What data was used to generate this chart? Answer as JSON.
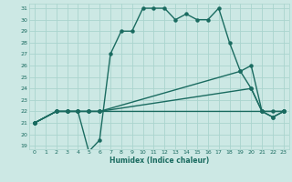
{
  "xlabel": "Humidex (Indice chaleur)",
  "bg_color": "#cce8e4",
  "grid_color": "#aad4ce",
  "line_color": "#1a6b60",
  "line1_x": [
    0,
    2,
    3,
    4,
    5,
    6,
    7,
    8,
    9,
    10,
    11,
    12,
    13,
    14,
    15,
    16,
    17,
    18,
    19,
    20,
    21,
    22,
    23
  ],
  "line1_y": [
    21,
    22,
    22,
    22,
    18.5,
    19.5,
    27,
    29,
    29,
    31,
    31,
    31,
    30,
    30.5,
    30,
    30,
    31,
    28,
    25.5,
    24,
    22,
    21.5,
    22
  ],
  "line2_x": [
    0,
    2,
    3,
    4,
    5,
    6,
    23
  ],
  "line2_y": [
    21,
    22,
    22,
    22,
    22,
    22,
    22
  ],
  "line3_x": [
    0,
    2,
    3,
    4,
    5,
    6,
    20,
    21,
    22,
    23
  ],
  "line3_y": [
    21,
    22,
    22,
    22,
    22,
    22,
    24,
    22,
    22,
    22
  ],
  "line4_x": [
    0,
    2,
    3,
    4,
    5,
    6,
    19,
    20,
    21,
    22,
    23
  ],
  "line4_y": [
    21,
    22,
    22,
    22,
    22,
    22,
    25.5,
    26,
    22,
    21.5,
    22
  ],
  "xmin": -0.5,
  "xmax": 23.5,
  "ymin": 18.7,
  "ymax": 31.4,
  "yticks": [
    19,
    20,
    21,
    22,
    23,
    24,
    25,
    26,
    27,
    28,
    29,
    30,
    31
  ],
  "xticks": [
    0,
    1,
    2,
    3,
    4,
    5,
    6,
    7,
    8,
    9,
    10,
    11,
    12,
    13,
    14,
    15,
    16,
    17,
    18,
    19,
    20,
    21,
    22,
    23
  ]
}
